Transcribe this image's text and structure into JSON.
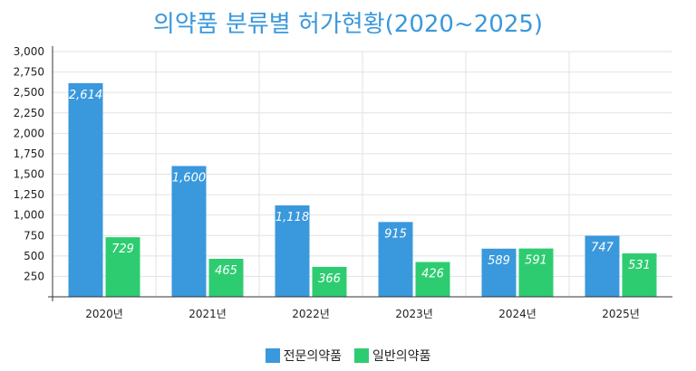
{
  "chart_data": {
    "type": "bar",
    "title": "의약품 분류별 허가현황(2020~2025)",
    "categories": [
      "2020년",
      "2021년",
      "2022년",
      "2023년",
      "2024년",
      "2025년"
    ],
    "series": [
      {
        "name": "전문의약품",
        "color": "#3a98dc",
        "values": [
          2614,
          1600,
          1118,
          915,
          589,
          747
        ]
      },
      {
        "name": "일반의약품",
        "color": "#2ecc71",
        "values": [
          729,
          465,
          366,
          426,
          591,
          531
        ]
      }
    ],
    "yticks": [
      "3,000",
      "2,750",
      "2,500",
      "2,250",
      "2,000",
      "1,750",
      "1,500",
      "1,250",
      "1,000",
      "750",
      "500",
      "250"
    ],
    "ylim": [
      0,
      3000
    ],
    "grid": true,
    "legend_position": "bottom"
  }
}
